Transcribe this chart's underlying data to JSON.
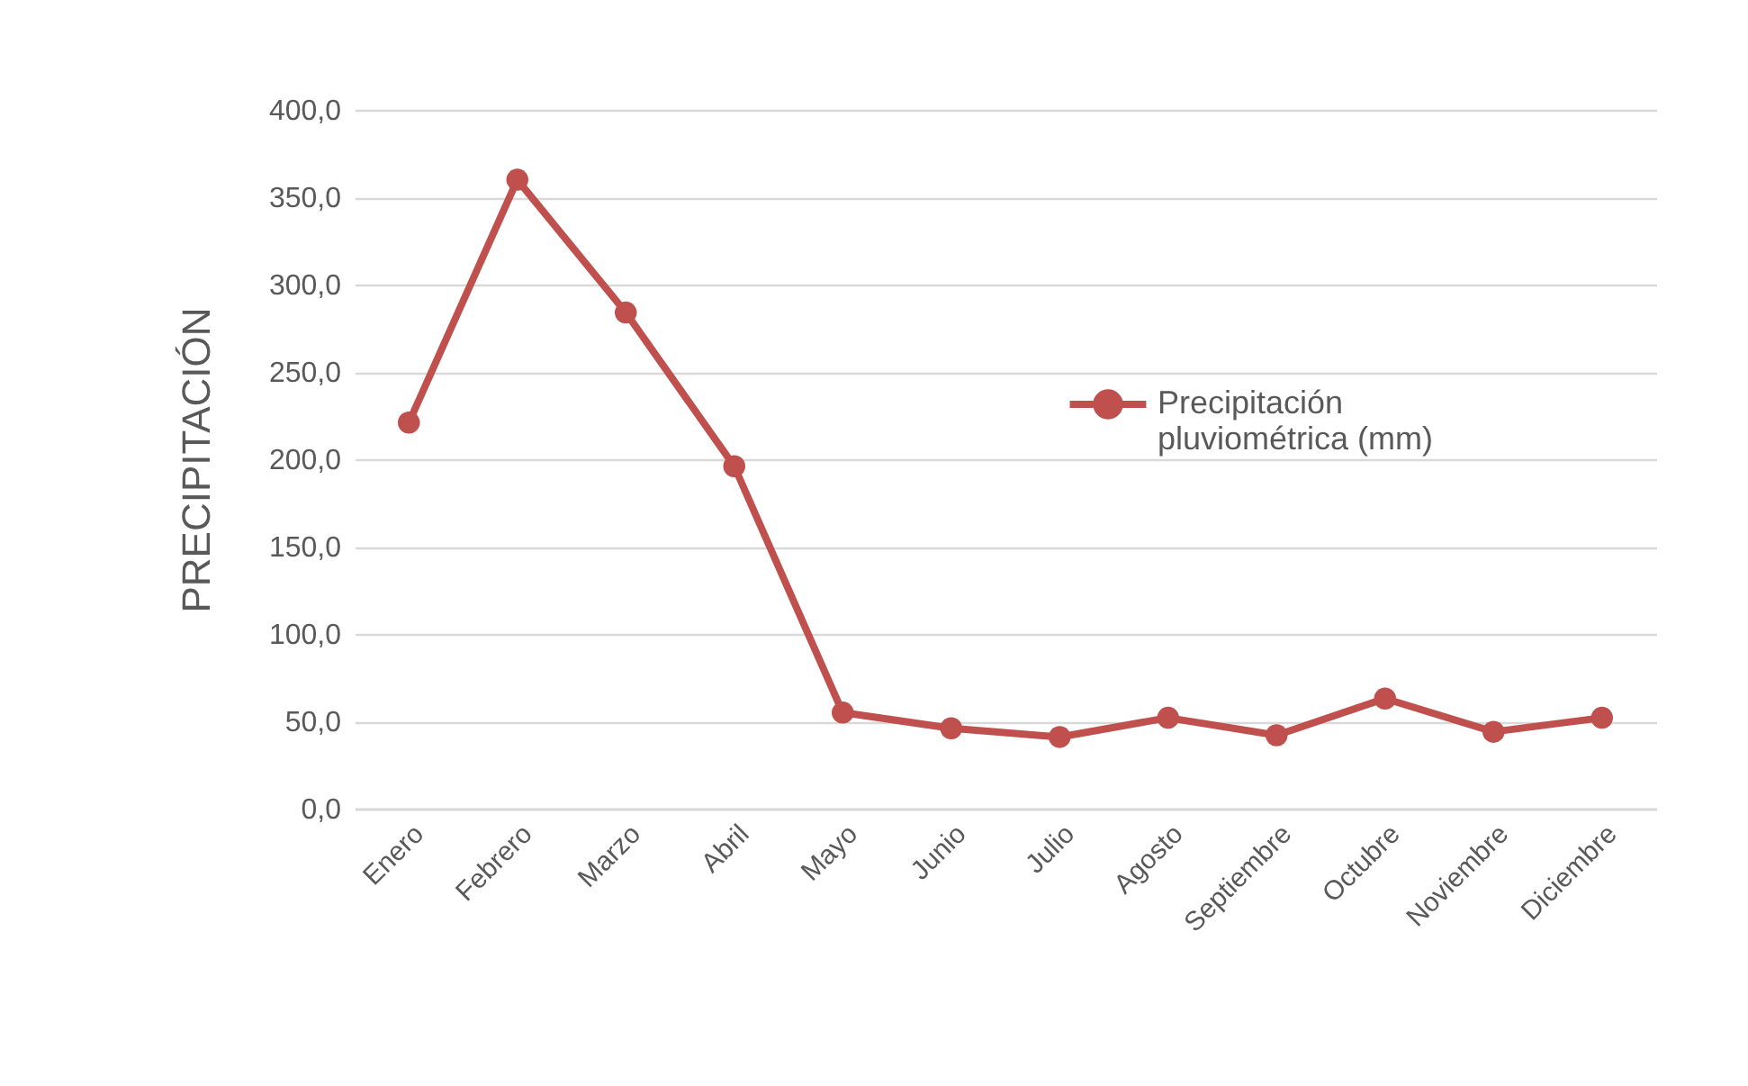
{
  "chart_data": {
    "type": "line",
    "ylabel": "PRECIPITACIÓN",
    "categories": [
      "Enero",
      "Febrero",
      "Marzo",
      "Abril",
      "Mayo",
      "Junio",
      "Julio",
      "Agosto",
      "Septiembre",
      "Octubre",
      "Noviembre",
      "Diciembre"
    ],
    "series": [
      {
        "name": "Precipitación pluviométrica (mm)",
        "color": "#c0504d",
        "values": [
          221,
          360,
          284,
          196,
          55,
          46,
          41,
          52,
          42,
          63,
          44,
          52
        ]
      }
    ],
    "ylim": [
      0,
      400
    ],
    "yticks": [
      {
        "value": 0,
        "label": "0,0"
      },
      {
        "value": 50,
        "label": "50,0"
      },
      {
        "value": 100,
        "label": "100,0"
      },
      {
        "value": 150,
        "label": "150,0"
      },
      {
        "value": 200,
        "label": "200,0"
      },
      {
        "value": 250,
        "label": "250,0"
      },
      {
        "value": 300,
        "label": "300,0"
      },
      {
        "value": 350,
        "label": "350,0"
      },
      {
        "value": 400,
        "label": "400,0"
      }
    ],
    "grid": "y",
    "legend": "right",
    "marker": "circle",
    "line_style": "solid"
  }
}
